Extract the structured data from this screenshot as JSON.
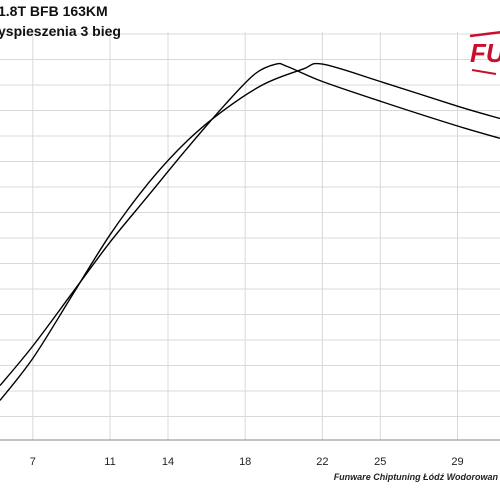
{
  "chart_data": {
    "type": "line",
    "title": "1.8T BFB 163KM",
    "subtitle": "yspieszenia 3 bieg",
    "x_ticks": [
      "7",
      "11",
      "14",
      "18",
      "22",
      "25",
      "29"
    ],
    "x_tick_values": [
      7,
      11,
      14,
      18,
      22,
      25,
      29
    ],
    "xlim": [
      5.3,
      31.2
    ],
    "ylim": [
      0,
      16.5
    ],
    "grid": true,
    "legend": "none",
    "series": [
      {
        "color": "#000000",
        "x": [
          5.3,
          7,
          9,
          11,
          13,
          15,
          17,
          18.5,
          19.6,
          20.2,
          22,
          25,
          29,
          31.2
        ],
        "y": [
          2.2,
          3.8,
          5.9,
          8.0,
          9.9,
          11.8,
          13.6,
          14.8,
          15.2,
          15.1,
          14.5,
          13.7,
          12.7,
          12.2
        ]
      },
      {
        "color": "#000000",
        "x": [
          5.3,
          7,
          9,
          11,
          13,
          15,
          17,
          19,
          21,
          22,
          25,
          29,
          31.2
        ],
        "y": [
          1.6,
          3.3,
          5.8,
          8.3,
          10.4,
          12.1,
          13.4,
          14.4,
          15.0,
          15.2,
          14.5,
          13.5,
          13.0
        ]
      }
    ]
  },
  "branding": {
    "logo_text": "FU",
    "footer": "Funware Chiptuning Łódź Wodorowan"
  },
  "colors": {
    "logo_red": "#c8102e",
    "grid": "#d9d9d9",
    "line": "#000000"
  }
}
